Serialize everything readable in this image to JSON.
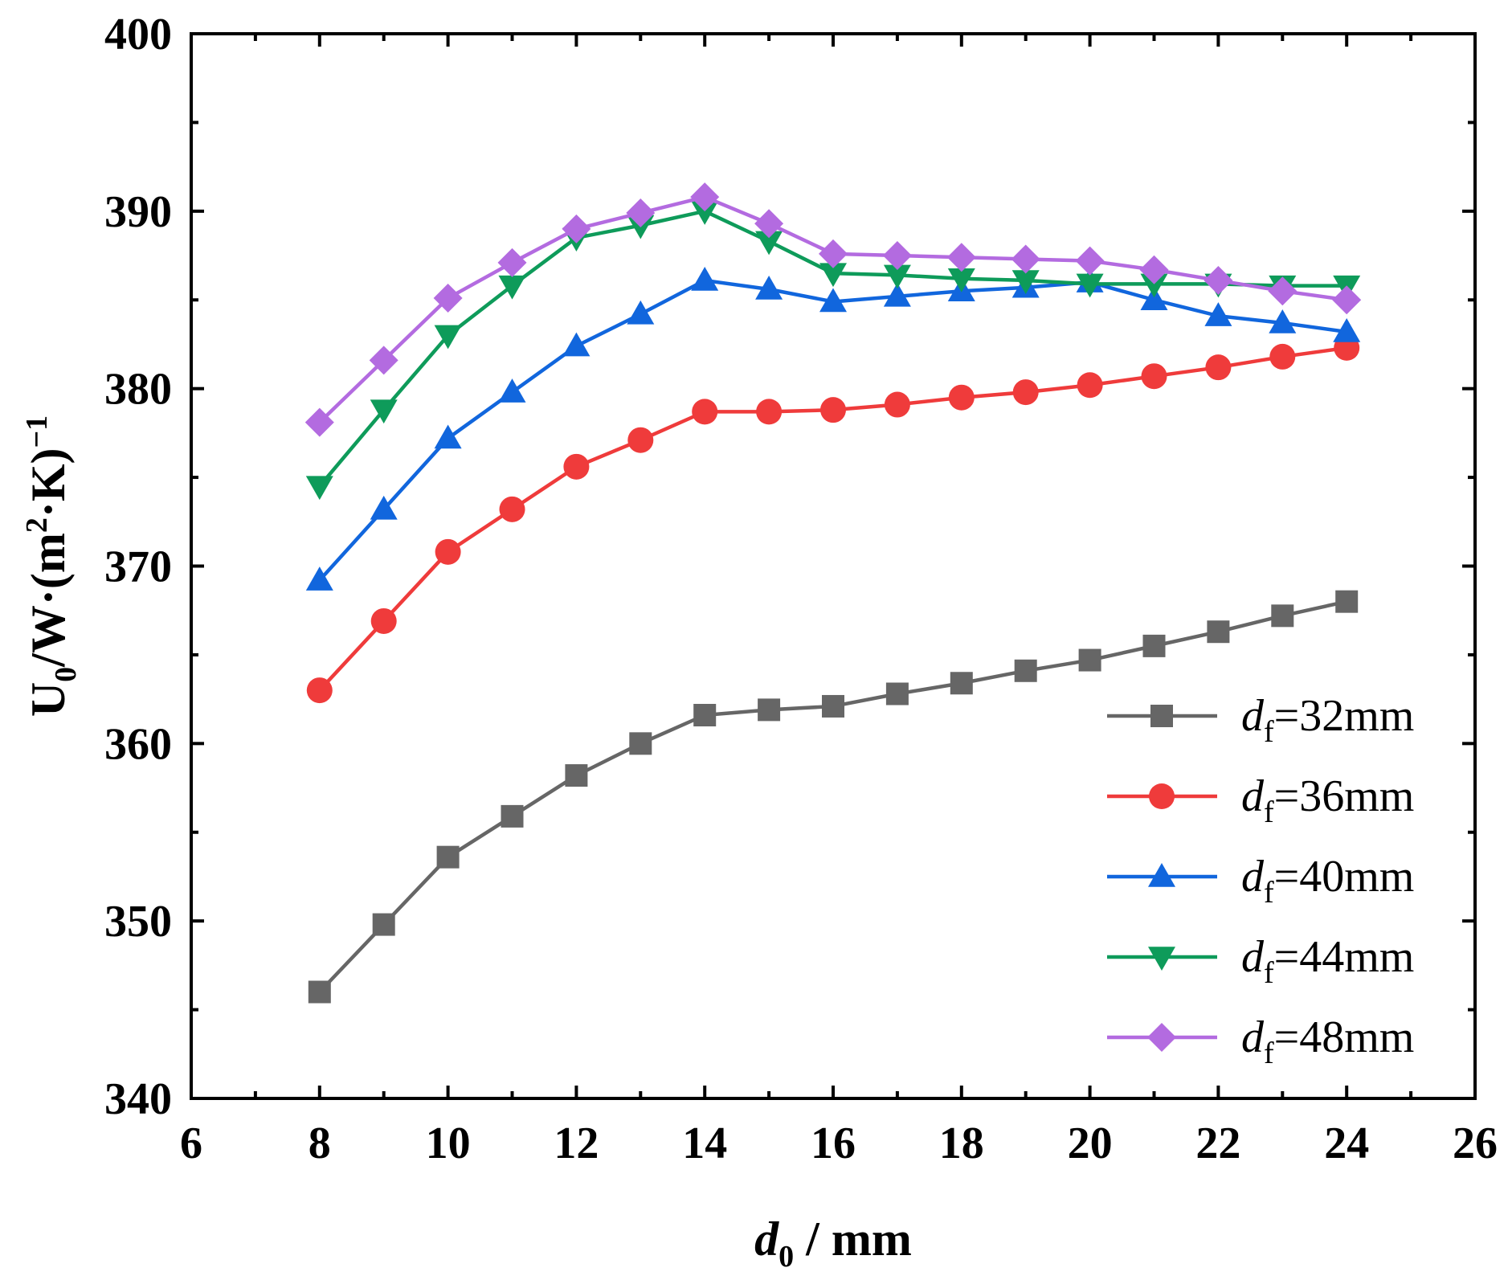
{
  "chart_data": {
    "type": "line",
    "title": "",
    "xlabel": {
      "main": "d",
      "sub": "0",
      "rest": " / mm"
    },
    "ylabel": {
      "u": "U",
      "sub0": "0",
      "mid": "/W·(m",
      "sup2": "2",
      "dot": "·K)",
      "supneg": "−1"
    },
    "xlim": [
      6,
      26
    ],
    "ylim": [
      340,
      400
    ],
    "xticks": [
      "6",
      "8",
      "10",
      "12",
      "14",
      "16",
      "18",
      "20",
      "22",
      "24",
      "26"
    ],
    "yticks": [
      "340",
      "350",
      "360",
      "370",
      "380",
      "390",
      "400"
    ],
    "x": [
      8,
      9,
      10,
      11,
      12,
      13,
      14,
      15,
      16,
      17,
      18,
      19,
      20,
      21,
      22,
      23,
      24
    ],
    "series": [
      {
        "name": "32mm",
        "legend_prefix": "d",
        "legend_sub": "f",
        "legend_suffix": "=32mm",
        "color": "#666666",
        "marker": "square",
        "values": [
          346.0,
          349.8,
          353.6,
          355.9,
          358.2,
          360.0,
          361.6,
          361.9,
          362.1,
          362.8,
          363.4,
          364.1,
          364.7,
          365.5,
          366.3,
          367.2,
          368.0
        ]
      },
      {
        "name": "36mm",
        "legend_prefix": "d",
        "legend_sub": "f",
        "legend_suffix": "=36mm",
        "color": "#ef3b3b",
        "marker": "circle",
        "values": [
          363.0,
          366.9,
          370.8,
          373.2,
          375.6,
          377.1,
          378.7,
          378.7,
          378.8,
          379.1,
          379.5,
          379.8,
          380.2,
          380.7,
          381.2,
          381.8,
          382.3
        ]
      },
      {
        "name": "40mm",
        "legend_prefix": "d",
        "legend_sub": "f",
        "legend_suffix": "=40mm",
        "color": "#1166dd",
        "marker": "triangle-up",
        "values": [
          369.2,
          373.2,
          377.2,
          379.8,
          382.4,
          384.2,
          386.1,
          385.6,
          384.9,
          385.2,
          385.5,
          385.7,
          386.0,
          385.0,
          384.1,
          383.7,
          383.2
        ]
      },
      {
        "name": "44mm",
        "legend_prefix": "d",
        "legend_sub": "f",
        "legend_suffix": "=44mm",
        "color": "#0e9b5a",
        "marker": "triangle-down",
        "values": [
          374.5,
          378.8,
          383.0,
          385.8,
          388.5,
          389.2,
          390.0,
          388.3,
          386.5,
          386.4,
          386.2,
          386.1,
          385.9,
          385.9,
          385.9,
          385.8,
          385.8
        ]
      },
      {
        "name": "48mm",
        "legend_prefix": "d",
        "legend_sub": "f",
        "legend_suffix": "=48mm",
        "color": "#b36be0",
        "marker": "diamond",
        "values": [
          378.1,
          381.6,
          385.1,
          387.1,
          389.0,
          389.9,
          390.8,
          389.3,
          387.6,
          387.5,
          387.4,
          387.3,
          387.2,
          386.7,
          386.1,
          385.5,
          385.0
        ]
      }
    ],
    "legend_position": "bottom-right"
  }
}
